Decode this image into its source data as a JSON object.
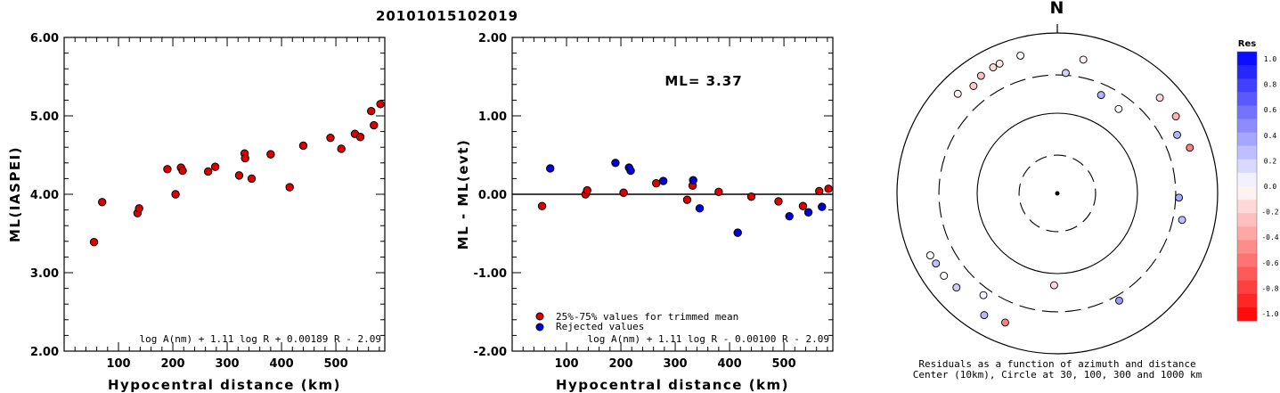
{
  "title": "20101015102019",
  "chart_data": [
    {
      "type": "scatter",
      "xlabel": "Hypocentral distance (km)",
      "ylabel": "ML(IASPEI)",
      "xlim": [
        0,
        590
      ],
      "ylim": [
        2.0,
        6.0
      ],
      "xticks": [
        "100",
        "200",
        "300",
        "400",
        "500"
      ],
      "yticks": [
        "2.00",
        "3.00",
        "4.00",
        "5.00",
        "6.00"
      ],
      "formula": "log A(nm) + 1.11 log R + 0.00189 R - 2.09",
      "series": [
        {
          "color": "#dd0000",
          "x": [
            55,
            70,
            135,
            138,
            190,
            205,
            215,
            218,
            265,
            278,
            322,
            332,
            333,
            345,
            380,
            415,
            440,
            490,
            510,
            535,
            545,
            565,
            570,
            582
          ],
          "y": [
            3.39,
            3.9,
            3.76,
            3.82,
            4.32,
            4.0,
            4.34,
            4.3,
            4.29,
            4.35,
            4.24,
            4.52,
            4.46,
            4.2,
            4.51,
            4.09,
            4.62,
            4.72,
            4.58,
            4.77,
            4.73,
            5.06,
            4.88,
            5.15
          ]
        }
      ]
    },
    {
      "type": "scatter",
      "xlabel": "Hypocentral distance (km)",
      "ylabel": "ML - ML(evt)",
      "xlim": [
        0,
        590
      ],
      "ylim": [
        -2.0,
        2.0
      ],
      "xticks": [
        "100",
        "200",
        "300",
        "400",
        "500"
      ],
      "yticks": [
        "-2.00",
        "-1.00",
        "0.00",
        "1.00",
        "2.00"
      ],
      "annotation": "ML= 3.37",
      "formula": "log A(nm) + 1.11 log R - 0.00100 R - 2.09",
      "series": [
        {
          "name": "25%-75% values for trimmed mean",
          "color": "#dd0000",
          "x": [
            55,
            135,
            138,
            205,
            265,
            322,
            332,
            380,
            440,
            490,
            535,
            565,
            582
          ],
          "y": [
            -0.15,
            0.0,
            0.05,
            0.02,
            0.14,
            -0.07,
            0.11,
            0.03,
            -0.03,
            -0.09,
            -0.15,
            0.04,
            0.07
          ]
        },
        {
          "name": "Rejected values",
          "color": "#0000dd",
          "x": [
            70,
            190,
            215,
            218,
            278,
            333,
            345,
            415,
            510,
            545,
            570
          ],
          "y": [
            0.33,
            0.4,
            0.34,
            0.3,
            0.17,
            0.18,
            -0.18,
            -0.49,
            -0.28,
            -0.23,
            -0.16
          ]
        }
      ]
    },
    {
      "type": "scatter",
      "subtype": "polar",
      "north_label": "N",
      "caption_line1": "Residuals as a function of azimuth and distance",
      "caption_line2": "Center (10km), Circle at 30, 100, 300 and 1000 km",
      "rings_km": [
        10,
        30,
        100,
        300,
        1000
      ],
      "scale": {
        "title": "Res",
        "labels": [
          "1.0",
          "0.8",
          "0.6",
          "0.4",
          "0.2",
          "0.0",
          "-0.2",
          "-0.4",
          "-0.6",
          "-0.8",
          "-1.0"
        ]
      },
      "points": [
        {
          "azimuth_deg": 4,
          "distance_km": 320,
          "res": 0.18
        },
        {
          "azimuth_deg": 11,
          "distance_km": 500,
          "res": -0.05
        },
        {
          "azimuth_deg": 24,
          "distance_km": 220,
          "res": 0.3
        },
        {
          "azimuth_deg": 36,
          "distance_km": 200,
          "res": 0.0
        },
        {
          "azimuth_deg": 47,
          "distance_km": 560,
          "res": -0.15
        },
        {
          "azimuth_deg": 57,
          "distance_km": 580,
          "res": -0.3
        },
        {
          "azimuth_deg": 64,
          "distance_km": 460,
          "res": 0.3
        },
        {
          "azimuth_deg": 71,
          "distance_km": 560,
          "res": -0.5
        },
        {
          "azimuth_deg": 92,
          "distance_km": 330,
          "res": 0.35
        },
        {
          "azimuth_deg": 102,
          "distance_km": 390,
          "res": 0.25
        },
        {
          "azimuth_deg": 150,
          "distance_km": 350,
          "res": 0.4
        },
        {
          "azimuth_deg": 182,
          "distance_km": 140,
          "res": -0.15
        },
        {
          "azimuth_deg": 202,
          "distance_km": 545,
          "res": -0.5
        },
        {
          "azimuth_deg": 211,
          "distance_km": 590,
          "res": 0.28
        },
        {
          "azimuth_deg": 216,
          "distance_km": 370,
          "res": 0.04
        },
        {
          "azimuth_deg": 227,
          "distance_km": 525,
          "res": 0.2
        },
        {
          "azimuth_deg": 234,
          "distance_km": 560,
          "res": 0.0
        },
        {
          "azimuth_deg": 240,
          "distance_km": 560,
          "res": 0.25
        },
        {
          "azimuth_deg": 244,
          "distance_km": 580,
          "res": 0.0
        },
        {
          "azimuth_deg": 315,
          "distance_km": 570,
          "res": -0.05
        },
        {
          "azimuth_deg": 322,
          "distance_km": 500,
          "res": -0.2
        },
        {
          "azimuth_deg": 327,
          "distance_km": 560,
          "res": -0.25
        },
        {
          "azimuth_deg": 333,
          "distance_km": 580,
          "res": -0.15
        },
        {
          "azimuth_deg": 336,
          "distance_km": 590,
          "res": -0.1
        },
        {
          "azimuth_deg": 345,
          "distance_km": 600,
          "res": 0.0
        }
      ]
    }
  ]
}
